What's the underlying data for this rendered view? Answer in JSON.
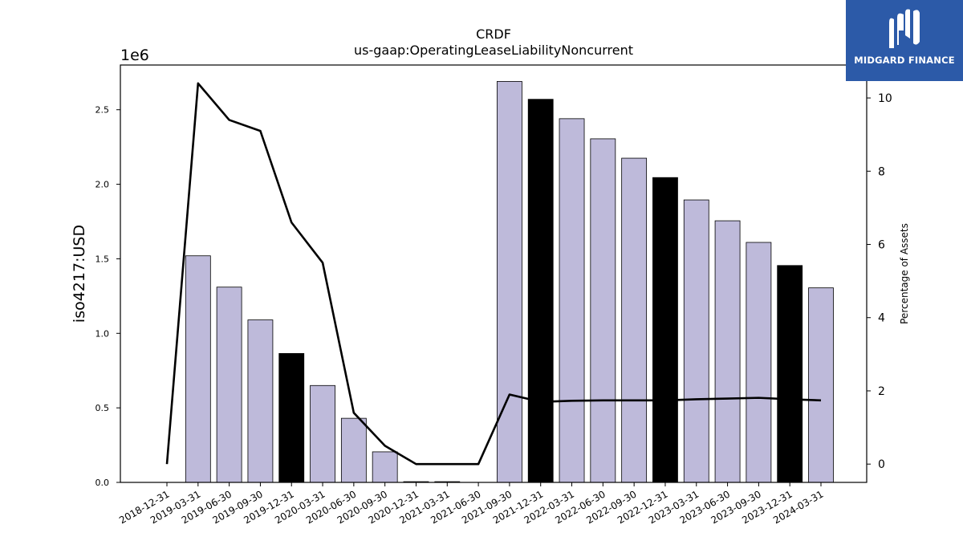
{
  "brand": {
    "name": "MIDGARD FINANCE",
    "logo_icon": "midgard-m-logo-icon",
    "color": "#2c5aa8"
  },
  "chart_data": {
    "type": "bar",
    "title": "CRDF",
    "subtitle": "us-gaap:OperatingLeaseLiabilityNoncurrent",
    "ylabel": "iso4217:USD",
    "y_offset_label": "1e6",
    "y2label": "Percentage of Assets",
    "ylim": [
      0,
      2800000
    ],
    "y2lim": [
      -0.5,
      10.9
    ],
    "yticks": [
      0.0,
      0.5,
      1.0,
      1.5,
      2.0,
      2.5
    ],
    "y2ticks": [
      0,
      2,
      4,
      6,
      8,
      10
    ],
    "categories": [
      "2018-12-31",
      "2019-03-31",
      "2019-06-30",
      "2019-09-30",
      "2019-12-31",
      "2020-03-31",
      "2020-06-30",
      "2020-09-30",
      "2020-12-31",
      "2021-03-31",
      "2021-06-30",
      "2021-09-30",
      "2021-12-31",
      "2022-03-31",
      "2022-06-30",
      "2022-09-30",
      "2022-12-31",
      "2023-03-31",
      "2023-06-30",
      "2023-09-30",
      "2023-12-31",
      "2024-03-31"
    ],
    "values": [
      0,
      1520000,
      1310000,
      1090000,
      865000,
      650000,
      430000,
      205000,
      5000,
      5000,
      0,
      2690000,
      2570000,
      2440000,
      2305000,
      2175000,
      2045000,
      1895000,
      1755000,
      1610000,
      1455000,
      1305000
    ],
    "highlight": [
      false,
      false,
      false,
      false,
      true,
      false,
      false,
      false,
      false,
      false,
      false,
      false,
      true,
      false,
      false,
      false,
      true,
      false,
      false,
      false,
      true,
      false
    ],
    "line_series": {
      "values": [
        0.0,
        10.4,
        9.4,
        9.1,
        6.6,
        5.5,
        1.4,
        0.5,
        0.0,
        0.0,
        0.0,
        1.9,
        1.7,
        1.73,
        1.74,
        1.74,
        1.74,
        1.77,
        1.79,
        1.81,
        1.77,
        1.74
      ]
    },
    "colors": {
      "bar": "#bebada",
      "highlight_bar": "#000000",
      "line": "#000000"
    },
    "grid": false
  }
}
